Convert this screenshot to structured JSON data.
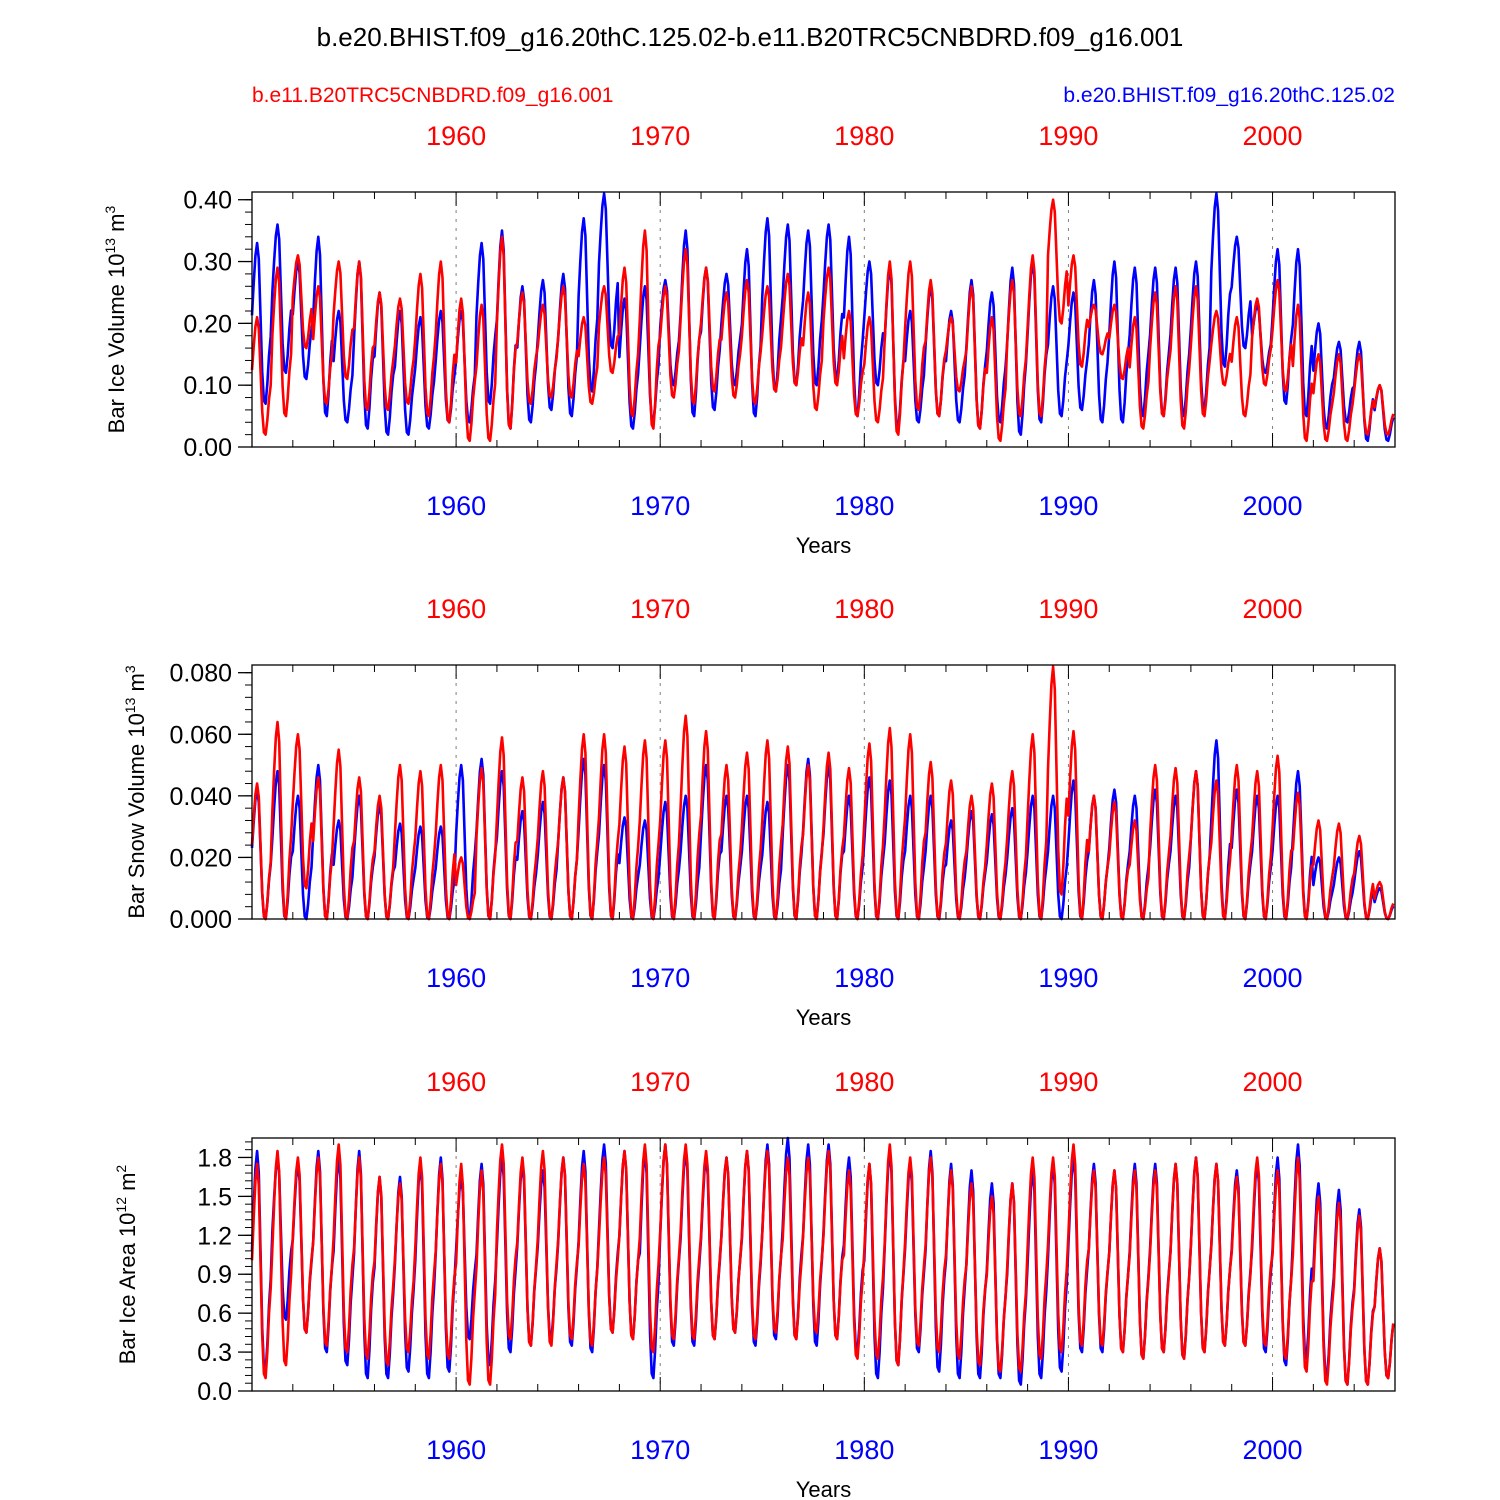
{
  "title": "b.e20.BHIST.f09_g16.20thC.125.02-b.e11.B20TRC5CNBDRD.f09_g16.001",
  "legend": {
    "left_label": "b.e11.B20TRC5CNBDRD.f09_g16.001",
    "right_label": "b.e20.BHIST.f09_g16.20thC.125.02"
  },
  "colors": {
    "case_red": "#ff0000",
    "case_blue": "#0000ff",
    "axis": "#000000",
    "grid": "#808080"
  },
  "chart_data": [
    {
      "type": "line",
      "ylabel": "Bar Ice Volume 10",
      "ylabel_sup": "13",
      "ylabel_unit": " m",
      "ylabel_unit_sup": "3",
      "xlabel": "Years",
      "top_tick_labels": [
        "1960",
        "1970",
        "1980",
        "1990",
        "2000"
      ],
      "bottom_tick_labels": [
        "1960",
        "1970",
        "1980",
        "1990",
        "2000"
      ],
      "xlim": [
        1950,
        2006
      ],
      "x_ticks": [
        1960,
        1970,
        1980,
        1990,
        2000
      ],
      "ylim": [
        0.0,
        0.4125
      ],
      "y_ticks": [
        0.0,
        0.1,
        0.2,
        0.3,
        0.4
      ],
      "y_tick_labels": [
        "0.00",
        "0.10",
        "0.20",
        "0.30",
        "0.40"
      ],
      "series": [
        {
          "name": "b.e20.BHIST.f09_g16.20thC.125.02",
          "color": "#0000ff",
          "annual_max": [
            0.33,
            0.36,
            0.3,
            0.34,
            0.22,
            0.3,
            0.25,
            0.22,
            0.21,
            0.22,
            0.22,
            0.33,
            0.35,
            0.26,
            0.27,
            0.28,
            0.37,
            0.41,
            0.24,
            0.26,
            0.27,
            0.35,
            0.29,
            0.28,
            0.32,
            0.37,
            0.36,
            0.35,
            0.36,
            0.34,
            0.3,
            0.29,
            0.22,
            0.26,
            0.22,
            0.27,
            0.25,
            0.29,
            0.3,
            0.26,
            0.25,
            0.27,
            0.3,
            0.29,
            0.29,
            0.29,
            0.3,
            0.41,
            0.34,
            0.23,
            0.32,
            0.32,
            0.2,
            0.17,
            0.17,
            0.1
          ],
          "annual_min": [
            0.07,
            0.12,
            0.11,
            0.05,
            0.04,
            0.03,
            0.02,
            0.02,
            0.03,
            0.04,
            0.04,
            0.07,
            0.03,
            0.04,
            0.06,
            0.05,
            0.09,
            0.16,
            0.03,
            0.04,
            0.1,
            0.05,
            0.06,
            0.1,
            0.05,
            0.09,
            0.1,
            0.1,
            0.11,
            0.05,
            0.1,
            0.03,
            0.04,
            0.05,
            0.04,
            0.03,
            0.04,
            0.02,
            0.04,
            0.05,
            0.06,
            0.04,
            0.04,
            0.05,
            0.05,
            0.05,
            0.06,
            0.13,
            0.16,
            0.12,
            0.07,
            0.05,
            0.03,
            0.04,
            0.01,
            0.01
          ]
        },
        {
          "name": "b.e11.B20TRC5CNBDRD.f09_g16.001",
          "color": "#ff0000",
          "annual_max": [
            0.21,
            0.29,
            0.31,
            0.26,
            0.3,
            0.3,
            0.25,
            0.24,
            0.28,
            0.3,
            0.24,
            0.23,
            0.34,
            0.25,
            0.23,
            0.26,
            0.21,
            0.26,
            0.29,
            0.35,
            0.26,
            0.32,
            0.29,
            0.25,
            0.27,
            0.26,
            0.28,
            0.25,
            0.29,
            0.22,
            0.21,
            0.3,
            0.3,
            0.27,
            0.21,
            0.26,
            0.21,
            0.27,
            0.31,
            0.4,
            0.31,
            0.23,
            0.23,
            0.21,
            0.25,
            0.26,
            0.26,
            0.22,
            0.21,
            0.24,
            0.27,
            0.23,
            0.15,
            0.15,
            0.15,
            0.1
          ],
          "annual_min": [
            0.02,
            0.05,
            0.16,
            0.07,
            0.11,
            0.06,
            0.06,
            0.07,
            0.05,
            0.04,
            0.01,
            0.01,
            0.03,
            0.07,
            0.08,
            0.08,
            0.07,
            0.12,
            0.05,
            0.03,
            0.08,
            0.07,
            0.09,
            0.08,
            0.07,
            0.09,
            0.1,
            0.06,
            0.1,
            0.05,
            0.04,
            0.02,
            0.06,
            0.05,
            0.09,
            0.03,
            0.01,
            0.05,
            0.05,
            0.2,
            0.13,
            0.15,
            0.11,
            0.03,
            0.05,
            0.03,
            0.05,
            0.1,
            0.05,
            0.1,
            0.09,
            0.01,
            0.01,
            0.01,
            0.02,
            0.02
          ]
        }
      ]
    },
    {
      "type": "line",
      "ylabel": "Bar Snow Volume 10",
      "ylabel_sup": "13",
      "ylabel_unit": " m",
      "ylabel_unit_sup": "3",
      "xlabel": "Years",
      "top_tick_labels": [
        "1960",
        "1970",
        "1980",
        "1990",
        "2000"
      ],
      "bottom_tick_labels": [
        "1960",
        "1970",
        "1980",
        "1990",
        "2000"
      ],
      "xlim": [
        1950,
        2006
      ],
      "x_ticks": [
        1960,
        1970,
        1980,
        1990,
        2000
      ],
      "ylim": [
        0.0,
        0.0825
      ],
      "y_ticks": [
        0.0,
        0.02,
        0.04,
        0.06,
        0.08
      ],
      "y_tick_labels": [
        "0.000",
        "0.020",
        "0.040",
        "0.060",
        "0.080"
      ],
      "series": [
        {
          "name": "b.e20.BHIST.f09_g16.20thC.125.02",
          "color": "#0000ff",
          "annual_max": [
            0.042,
            0.048,
            0.04,
            0.05,
            0.032,
            0.04,
            0.037,
            0.031,
            0.03,
            0.03,
            0.05,
            0.052,
            0.048,
            0.035,
            0.038,
            0.046,
            0.052,
            0.05,
            0.033,
            0.032,
            0.038,
            0.04,
            0.05,
            0.04,
            0.04,
            0.038,
            0.05,
            0.052,
            0.05,
            0.04,
            0.046,
            0.045,
            0.04,
            0.04,
            0.032,
            0.035,
            0.034,
            0.036,
            0.04,
            0.04,
            0.045,
            0.04,
            0.042,
            0.04,
            0.042,
            0.04,
            0.048,
            0.058,
            0.042,
            0.04,
            0.04,
            0.048,
            0.02,
            0.02,
            0.022,
            0.01
          ],
          "annual_min": [
            0.0,
            0.0,
            0.0,
            0.0,
            0.0,
            0.0,
            0.0,
            0.0,
            0.0,
            0.0,
            0.0,
            0.0,
            0.0,
            0.0,
            0.0,
            0.0,
            0.0,
            0.0,
            0.0,
            0.0,
            0.0,
            0.0,
            0.0,
            0.0,
            0.0,
            0.0,
            0.0,
            0.0,
            0.0,
            0.0,
            0.0,
            0.0,
            0.0,
            0.0,
            0.0,
            0.0,
            0.0,
            0.0,
            0.0,
            0.0,
            0.0,
            0.0,
            0.0,
            0.0,
            0.0,
            0.0,
            0.0,
            0.0,
            0.0,
            0.0,
            0.0,
            0.0,
            0.0,
            0.0,
            0.0,
            0.0
          ]
        },
        {
          "name": "b.e11.B20TRC5CNBDRD.f09_g16.001",
          "color": "#ff0000",
          "annual_max": [
            0.044,
            0.064,
            0.06,
            0.046,
            0.055,
            0.046,
            0.04,
            0.05,
            0.048,
            0.05,
            0.02,
            0.049,
            0.059,
            0.046,
            0.048,
            0.046,
            0.06,
            0.06,
            0.056,
            0.058,
            0.058,
            0.066,
            0.061,
            0.05,
            0.054,
            0.058,
            0.056,
            0.05,
            0.054,
            0.049,
            0.057,
            0.062,
            0.06,
            0.051,
            0.045,
            0.04,
            0.044,
            0.048,
            0.06,
            0.082,
            0.061,
            0.04,
            0.038,
            0.032,
            0.05,
            0.049,
            0.048,
            0.045,
            0.05,
            0.048,
            0.053,
            0.041,
            0.032,
            0.031,
            0.027,
            0.012
          ],
          "annual_min": [
            0.0,
            0.0,
            0.01,
            0.0,
            0.0,
            0.0,
            0.0,
            0.0,
            0.0,
            0.0,
            0.0,
            0.0,
            0.0,
            0.0,
            0.0,
            0.0,
            0.0,
            0.0,
            0.0,
            0.0,
            0.0,
            0.0,
            0.0,
            0.0,
            0.0,
            0.0,
            0.0,
            0.0,
            0.0,
            0.0,
            0.0,
            0.0,
            0.0,
            0.0,
            0.0,
            0.0,
            0.0,
            0.0,
            0.0,
            0.008,
            0.0,
            0.0,
            0.0,
            0.0,
            0.0,
            0.0,
            0.0,
            0.0,
            0.0,
            0.0,
            0.0,
            0.0,
            0.0,
            0.0,
            0.0,
            0.0
          ]
        }
      ]
    },
    {
      "type": "line",
      "ylabel": "Bar Ice Area 10",
      "ylabel_sup": "12",
      "ylabel_unit": " m",
      "ylabel_unit_sup": "2",
      "xlabel": "Years",
      "top_tick_labels": [
        "1960",
        "1970",
        "1980",
        "1990",
        "2000"
      ],
      "bottom_tick_labels": [
        "1960",
        "1970",
        "1980",
        "1990",
        "2000"
      ],
      "xlim": [
        1950,
        2006
      ],
      "x_ticks": [
        1960,
        1970,
        1980,
        1990,
        2000
      ],
      "ylim": [
        0.0,
        1.95
      ],
      "y_ticks": [
        0.0,
        0.3,
        0.6,
        0.9,
        1.2,
        1.5,
        1.8
      ],
      "y_tick_labels": [
        "0.0",
        "0.3",
        "0.6",
        "0.9",
        "1.2",
        "1.5",
        "1.8"
      ],
      "series": [
        {
          "name": "b.e20.BHIST.f09_g16.20thC.125.02",
          "color": "#0000ff",
          "annual_max": [
            1.85,
            1.8,
            1.75,
            1.85,
            1.8,
            1.85,
            1.65,
            1.65,
            1.75,
            1.8,
            1.65,
            1.75,
            1.8,
            1.75,
            1.7,
            1.8,
            1.85,
            1.9,
            1.85,
            1.85,
            1.9,
            1.85,
            1.8,
            1.8,
            1.85,
            1.9,
            1.95,
            1.9,
            1.9,
            1.8,
            1.75,
            1.85,
            1.75,
            1.85,
            1.75,
            1.7,
            1.6,
            1.6,
            1.7,
            1.75,
            1.8,
            1.75,
            1.7,
            1.75,
            1.75,
            1.75,
            1.8,
            1.75,
            1.7,
            1.75,
            1.8,
            1.9,
            1.6,
            1.55,
            1.4,
            1.1
          ],
          "annual_min": [
            0.15,
            0.55,
            0.45,
            0.3,
            0.2,
            0.1,
            0.1,
            0.15,
            0.1,
            0.15,
            0.4,
            0.2,
            0.3,
            0.35,
            0.4,
            0.35,
            0.3,
            0.45,
            0.4,
            0.1,
            0.35,
            0.35,
            0.4,
            0.45,
            0.35,
            0.4,
            0.4,
            0.35,
            0.4,
            0.3,
            0.1,
            0.2,
            0.3,
            0.15,
            0.1,
            0.1,
            0.1,
            0.05,
            0.1,
            0.15,
            0.3,
            0.3,
            0.3,
            0.25,
            0.3,
            0.25,
            0.3,
            0.35,
            0.35,
            0.3,
            0.2,
            0.25,
            0.1,
            0.05,
            0.05,
            0.1
          ]
        },
        {
          "name": "b.e11.B20TRC5CNBDRD.f09_g16.001",
          "color": "#ff0000",
          "annual_max": [
            1.75,
            1.85,
            1.8,
            1.8,
            1.9,
            1.8,
            1.65,
            1.6,
            1.8,
            1.75,
            1.75,
            1.7,
            1.9,
            1.8,
            1.85,
            1.8,
            1.75,
            1.8,
            1.85,
            1.9,
            1.9,
            1.9,
            1.85,
            1.8,
            1.85,
            1.85,
            1.8,
            1.8,
            1.85,
            1.7,
            1.75,
            1.9,
            1.8,
            1.8,
            1.7,
            1.6,
            1.5,
            1.6,
            1.8,
            1.8,
            1.9,
            1.7,
            1.7,
            1.7,
            1.7,
            1.75,
            1.8,
            1.75,
            1.65,
            1.8,
            1.7,
            1.8,
            1.5,
            1.45,
            1.35,
            1.1
          ],
          "annual_min": [
            0.1,
            0.2,
            0.45,
            0.35,
            0.3,
            0.25,
            0.2,
            0.3,
            0.25,
            0.25,
            0.05,
            0.05,
            0.4,
            0.35,
            0.35,
            0.4,
            0.35,
            0.45,
            0.4,
            0.3,
            0.4,
            0.4,
            0.4,
            0.45,
            0.4,
            0.45,
            0.4,
            0.45,
            0.4,
            0.25,
            0.25,
            0.2,
            0.35,
            0.3,
            0.25,
            0.2,
            0.15,
            0.15,
            0.25,
            0.3,
            0.35,
            0.35,
            0.3,
            0.25,
            0.3,
            0.25,
            0.3,
            0.35,
            0.35,
            0.35,
            0.25,
            0.15,
            0.05,
            0.05,
            0.05,
            0.1
          ]
        }
      ]
    }
  ]
}
